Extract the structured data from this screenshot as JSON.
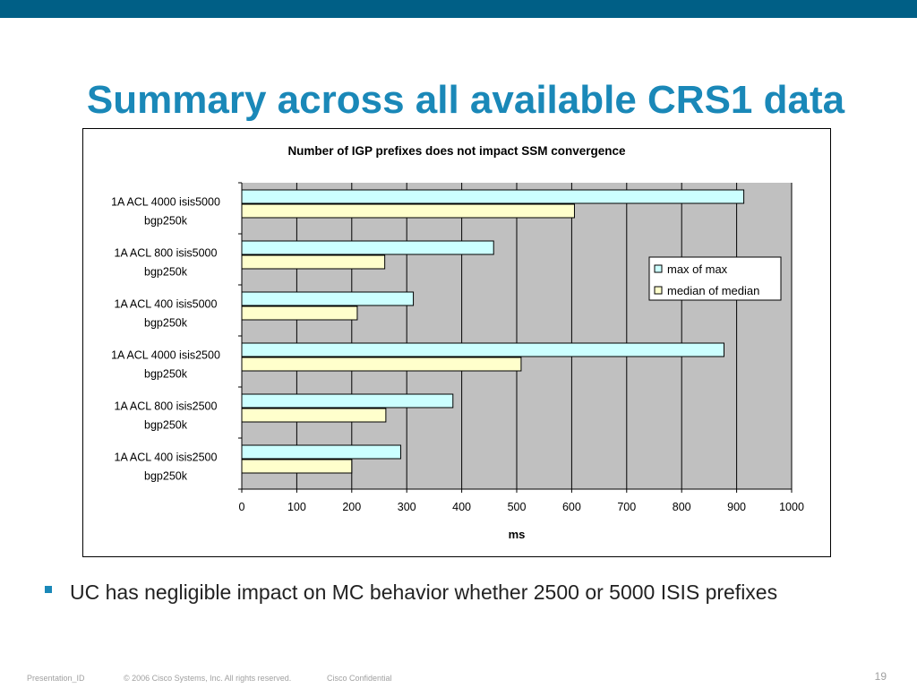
{
  "slide": {
    "title": "Summary across all available CRS1 data",
    "bullet": "UC has negligible impact on MC behavior whether 2500 or 5000 ISIS prefixes",
    "footer": {
      "presentation_id": "Presentation_ID",
      "copyright": "© 2006 Cisco Systems, Inc. All rights reserved.",
      "confidential": "Cisco Confidential",
      "page": "19"
    }
  },
  "colors": {
    "header_bar": "#005f86",
    "title": "#1a88b8",
    "plot_background": "#c0c0c0",
    "series_max": "#ccffff",
    "series_median": "#ffffcc"
  },
  "chart_data": {
    "type": "bar",
    "orientation": "horizontal",
    "title": "Number of IGP prefixes does not impact SSM convergence",
    "xlabel": "ms",
    "ylabel": "",
    "xlim": [
      0,
      1000
    ],
    "xticks": [
      0,
      100,
      200,
      300,
      400,
      500,
      600,
      700,
      800,
      900,
      1000
    ],
    "grid": "vertical",
    "legend_position": "right",
    "categories": [
      [
        "1A ACL 4000 isis5000",
        "bgp250k"
      ],
      [
        "1A ACL 800 isis5000",
        "bgp250k"
      ],
      [
        "1A ACL 400 isis5000",
        "bgp250k"
      ],
      [
        "1A ACL 4000 isis2500",
        "bgp250k"
      ],
      [
        "1A ACL 800 isis2500",
        "bgp250k"
      ],
      [
        "1A ACL 400 isis2500",
        "bgp250k"
      ]
    ],
    "series": [
      {
        "name": "max of max",
        "values": [
          913,
          458,
          312,
          877,
          384,
          289
        ],
        "color": "#ccffff"
      },
      {
        "name": "median of median",
        "values": [
          605,
          260,
          210,
          508,
          262,
          200
        ],
        "color": "#ffffcc"
      }
    ]
  }
}
